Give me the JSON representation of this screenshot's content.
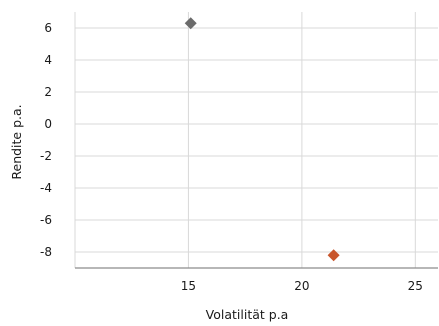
{
  "chart_data": {
    "type": "scatter",
    "title": "",
    "xlabel": "Volatilität p.a",
    "ylabel": "Rendite p.a.",
    "xlim": [
      10,
      26
    ],
    "ylim": [
      -9,
      7
    ],
    "x_ticks": [
      15,
      20,
      25
    ],
    "y_ticks": [
      6,
      4,
      2,
      0,
      -2,
      -4,
      -6,
      -8
    ],
    "grid": true,
    "legend": "none",
    "marker": "diamond",
    "series": [
      {
        "x": [
          15.1
        ],
        "y": [
          6.3
        ],
        "color": "#6b6b6b"
      },
      {
        "x": [
          21.4
        ],
        "y": [
          -8.2
        ],
        "color": "#c8562c"
      }
    ]
  }
}
